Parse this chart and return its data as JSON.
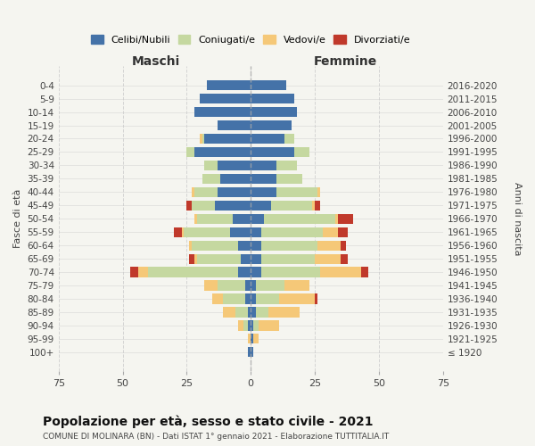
{
  "age_groups": [
    "100+",
    "95-99",
    "90-94",
    "85-89",
    "80-84",
    "75-79",
    "70-74",
    "65-69",
    "60-64",
    "55-59",
    "50-54",
    "45-49",
    "40-44",
    "35-39",
    "30-34",
    "25-29",
    "20-24",
    "15-19",
    "10-14",
    "5-9",
    "0-4"
  ],
  "birth_years": [
    "≤ 1920",
    "1921-1925",
    "1926-1930",
    "1931-1935",
    "1936-1940",
    "1941-1945",
    "1946-1950",
    "1951-1955",
    "1956-1960",
    "1961-1965",
    "1966-1970",
    "1971-1975",
    "1976-1980",
    "1981-1985",
    "1986-1990",
    "1991-1995",
    "1996-2000",
    "2001-2005",
    "2006-2010",
    "2011-2015",
    "2016-2020"
  ],
  "males": {
    "celibi": [
      1,
      0,
      1,
      1,
      2,
      2,
      5,
      4,
      5,
      8,
      7,
      14,
      13,
      12,
      13,
      22,
      18,
      13,
      22,
      20,
      17
    ],
    "coniugati": [
      0,
      0,
      2,
      5,
      9,
      11,
      35,
      17,
      18,
      18,
      14,
      9,
      9,
      7,
      5,
      3,
      1,
      0,
      0,
      0,
      0
    ],
    "vedovi": [
      0,
      1,
      2,
      5,
      4,
      5,
      4,
      1,
      1,
      1,
      1,
      0,
      1,
      0,
      0,
      0,
      1,
      0,
      0,
      0,
      0
    ],
    "divorziati": [
      0,
      0,
      0,
      0,
      0,
      0,
      3,
      2,
      0,
      3,
      0,
      2,
      0,
      0,
      0,
      0,
      0,
      0,
      0,
      0,
      0
    ]
  },
  "females": {
    "nubili": [
      1,
      1,
      1,
      2,
      2,
      2,
      4,
      4,
      4,
      4,
      5,
      8,
      10,
      10,
      10,
      17,
      13,
      16,
      18,
      17,
      14
    ],
    "coniugate": [
      0,
      0,
      2,
      5,
      9,
      11,
      23,
      21,
      22,
      24,
      28,
      16,
      16,
      10,
      8,
      6,
      4,
      0,
      0,
      0,
      0
    ],
    "vedove": [
      0,
      2,
      8,
      12,
      14,
      10,
      16,
      10,
      9,
      6,
      1,
      1,
      1,
      0,
      0,
      0,
      0,
      0,
      0,
      0,
      0
    ],
    "divorziate": [
      0,
      0,
      0,
      0,
      1,
      0,
      3,
      3,
      2,
      4,
      6,
      2,
      0,
      0,
      0,
      0,
      0,
      0,
      0,
      0,
      0
    ]
  },
  "colors": {
    "celibi": "#4472a8",
    "coniugati": "#c5d8a0",
    "vedovi": "#f5c878",
    "divorziati": "#c0392b"
  },
  "xlim": 75,
  "title": "Popolazione per età, sesso e stato civile - 2021",
  "subtitle": "COMUNE DI MOLINARA (BN) - Dati ISTAT 1° gennaio 2021 - Elaborazione TUTTITALIA.IT",
  "ylabel_left": "Fasce di età",
  "ylabel_right": "Anni di nascita",
  "xlabel_left": "Maschi",
  "xlabel_right": "Femmine",
  "background_color": "#f5f5f0",
  "bar_height": 0.75
}
